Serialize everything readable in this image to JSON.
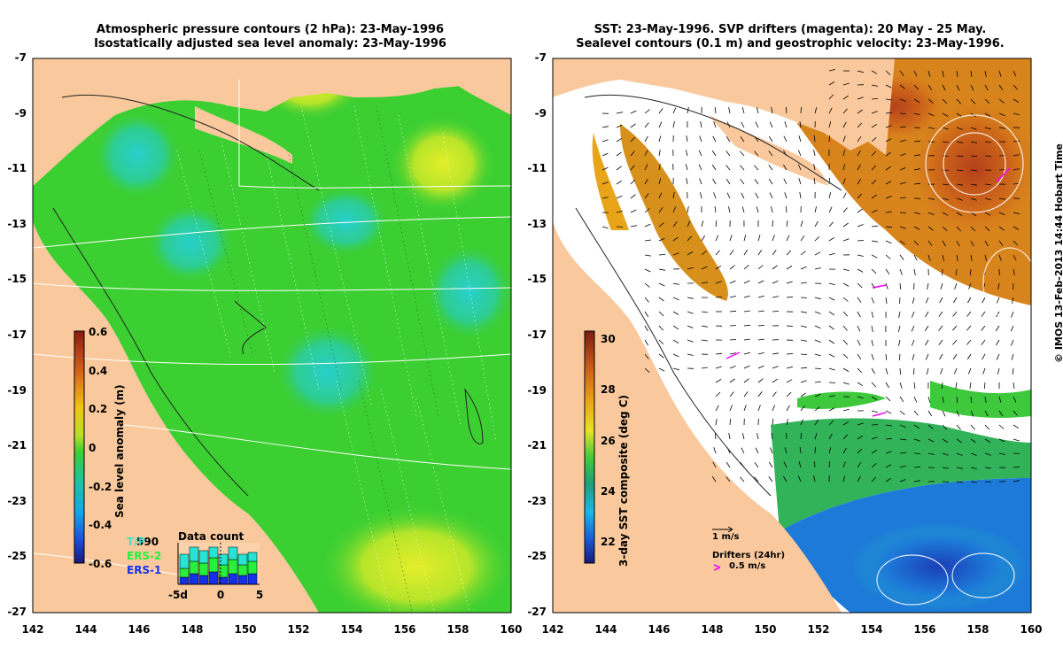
{
  "left_panel": {
    "title_line1": "Atmospheric pressure contours (2 hPa): 23-May-1996",
    "title_line2": "Isostatically adjusted sea level anomaly: 23-May-1996",
    "colorbar": {
      "label": "Sea level anomaly (m)",
      "ticks": [
        "0.6",
        "0.4",
        "0.2",
        "0",
        "-0.2",
        "-0.4",
        "-0.6"
      ]
    },
    "satellites": [
      "T/P",
      "ERS-2",
      "ERS-1"
    ],
    "pressure_label": "590",
    "data_count": {
      "title": "Data count",
      "axis_ticks": [
        "-5d",
        "0",
        "5"
      ]
    }
  },
  "right_panel": {
    "title_line1": "SST: 23-May-1996. SVP drifters (magenta): 20 May - 25 May.",
    "title_line2": "Sealevel contours (0.1 m) and geostrophic velocity: 23-May-1996.",
    "colorbar": {
      "label": "3-day SST composite (deg C)",
      "ticks": [
        "30",
        "28",
        "26",
        "24",
        "22"
      ]
    },
    "velocity_scale_label": "1 m/s",
    "drifter_label": "Drifters (24hr)",
    "drifter_speed_label": "0.5 m/s"
  },
  "axes": {
    "lon_ticks": [
      "142",
      "144",
      "146",
      "148",
      "150",
      "152",
      "154",
      "156",
      "158",
      "160"
    ],
    "lat_ticks": [
      "-7",
      "-9",
      "-11",
      "-13",
      "-15",
      "-17",
      "-19",
      "-21",
      "-23",
      "-25",
      "-27"
    ]
  },
  "credit": "© IMOS 13-Feb-2013 14:44 Hobart Time",
  "colors": {
    "land": "#f9c99d",
    "sla_base": "#3ccf32",
    "sla_low": "#22c9a6",
    "sla_high": "#d3e92a",
    "sst_warm": "#c8621a",
    "sst_cold": "#1d6fd6",
    "drifter": "#ff00ff"
  }
}
